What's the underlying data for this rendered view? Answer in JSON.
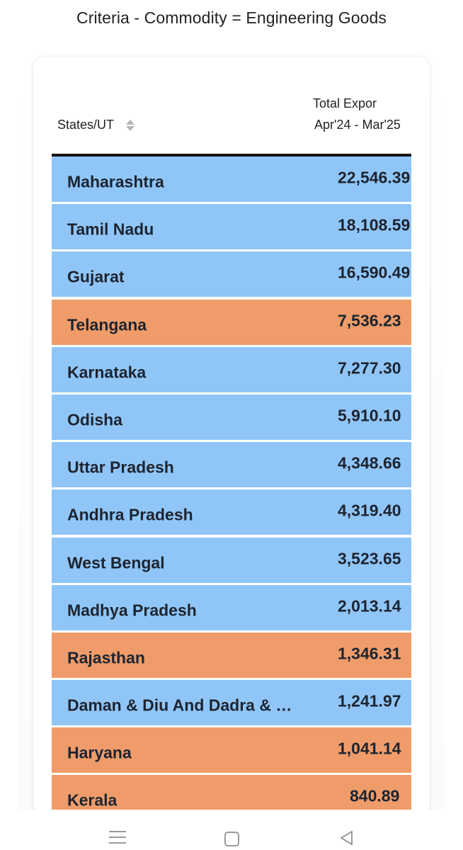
{
  "criteria": "Criteria - Commodity = Engineering Goods",
  "table": {
    "col_state": "States/UT",
    "col_total": "Total Expor",
    "col_period": "Apr'24 - Mar'25",
    "rows": [
      {
        "state": "Maharashtra",
        "value": "22,546.39",
        "color": "#90c6f7"
      },
      {
        "state": "Tamil Nadu",
        "value": "18,108.59",
        "color": "#90c6f7"
      },
      {
        "state": "Gujarat",
        "value": "16,590.49",
        "color": "#90c6f7"
      },
      {
        "state": "Telangana",
        "value": "7,536.23",
        "color": "#ef9c6a"
      },
      {
        "state": "Karnataka",
        "value": "7,277.30",
        "color": "#90c6f7"
      },
      {
        "state": "Odisha",
        "value": "5,910.10",
        "color": "#90c6f7"
      },
      {
        "state": "Uttar Pradesh",
        "value": "4,348.66",
        "color": "#90c6f7"
      },
      {
        "state": "Andhra Pradesh",
        "value": "4,319.40",
        "color": "#90c6f7"
      },
      {
        "state": "West Bengal",
        "value": "3,523.65",
        "color": "#90c6f7"
      },
      {
        "state": "Madhya Pradesh",
        "value": "2,013.14",
        "color": "#90c6f7"
      },
      {
        "state": "Rajasthan",
        "value": "1,346.31",
        "color": "#ef9c6a"
      },
      {
        "state": "Daman & Diu And Dadra & …",
        "value": "1,241.97",
        "color": "#90c6f7"
      },
      {
        "state": "Haryana",
        "value": "1,041.14",
        "color": "#ef9c6a"
      },
      {
        "state": "Kerala",
        "value": "840.89",
        "color": "#ef9c6a"
      }
    ]
  },
  "nav": {
    "menu_icon": "menu-icon",
    "home_icon": "home-square-icon",
    "back_icon": "back-triangle-icon"
  }
}
